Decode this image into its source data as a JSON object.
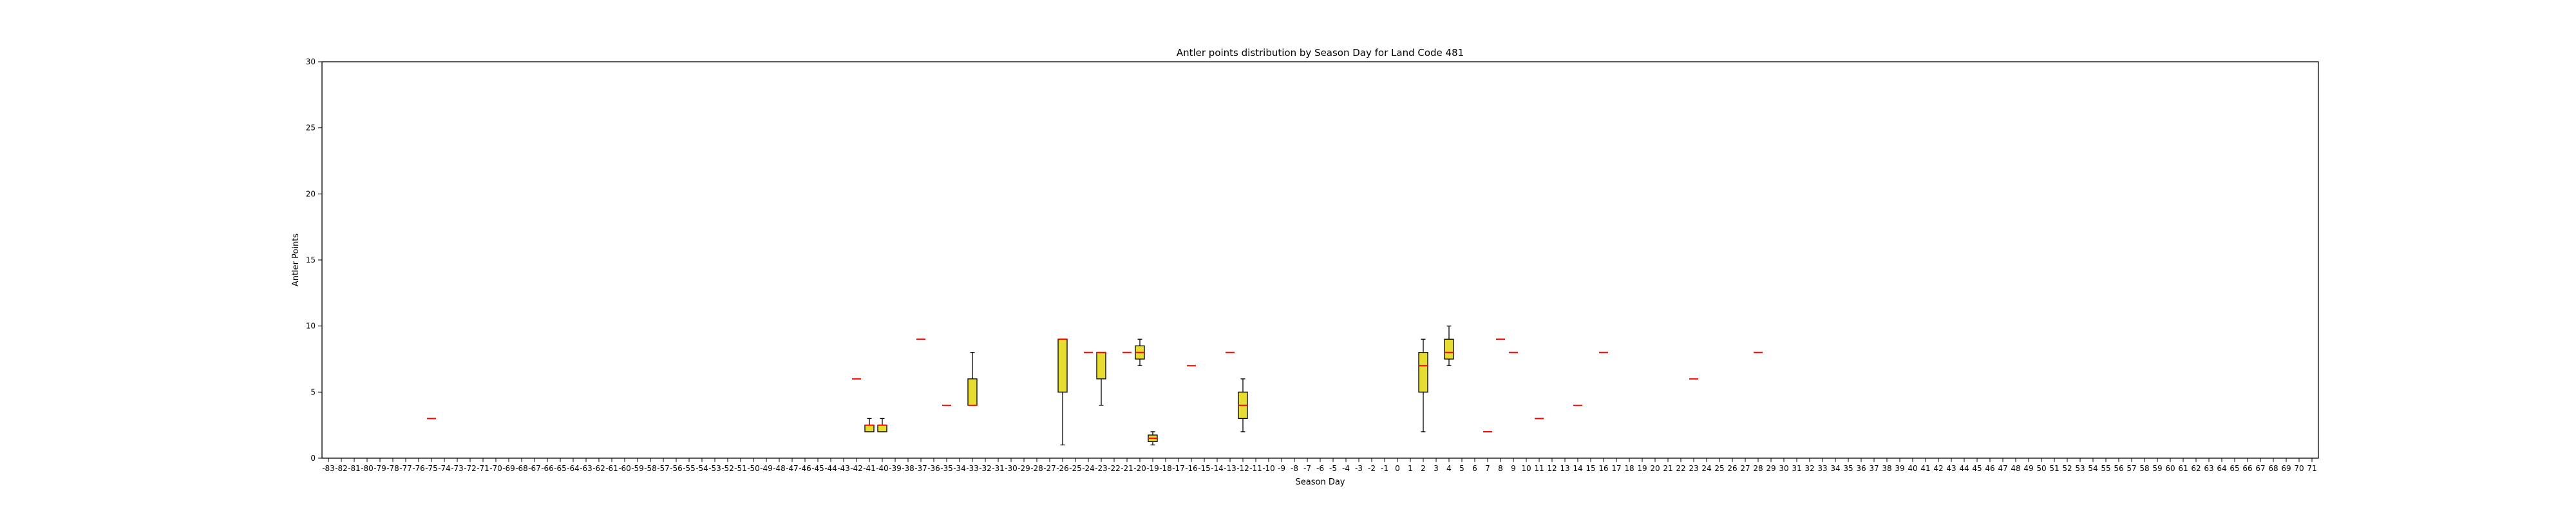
{
  "chart_data": {
    "type": "box",
    "title": "Antler points distribution by Season Day for Land Code 481",
    "xlabel": "Season Day",
    "ylabel": "Antler Points",
    "ylim": [
      0,
      30
    ],
    "yticks": [
      0,
      5,
      10,
      15,
      20,
      25,
      30
    ],
    "x_categories_range": [
      -83,
      71
    ],
    "grid": false,
    "legend": "none",
    "colors": {
      "box_fill": "#e6dc32",
      "box_edge": "#000000",
      "median": "#ff0000",
      "whisker": "#000000"
    },
    "boxes": [
      {
        "day": -75,
        "q1": 3,
        "median": 3,
        "q3": 3,
        "whislo": 3,
        "whishi": 3
      },
      {
        "day": -42,
        "q1": 6,
        "median": 6,
        "q3": 6,
        "whislo": 6,
        "whishi": 6
      },
      {
        "day": -41,
        "q1": 2,
        "median": 2.5,
        "q3": 2.5,
        "whislo": 2,
        "whishi": 3
      },
      {
        "day": -40,
        "q1": 2,
        "median": 2.5,
        "q3": 2.5,
        "whislo": 2,
        "whishi": 3
      },
      {
        "day": -37,
        "q1": 9,
        "median": 9,
        "q3": 9,
        "whislo": 9,
        "whishi": 9
      },
      {
        "day": -35,
        "q1": 4,
        "median": 4,
        "q3": 4,
        "whislo": 4,
        "whishi": 4
      },
      {
        "day": -33,
        "q1": 4,
        "median": 4,
        "q3": 6,
        "whislo": 4,
        "whishi": 8
      },
      {
        "day": -26,
        "q1": 5,
        "median": 9,
        "q3": 9,
        "whislo": 1,
        "whishi": 9
      },
      {
        "day": -24,
        "q1": 8,
        "median": 8,
        "q3": 8,
        "whislo": 8,
        "whishi": 8
      },
      {
        "day": -23,
        "q1": 6,
        "median": 8,
        "q3": 8,
        "whislo": 4,
        "whishi": 8
      },
      {
        "day": -21,
        "q1": 8,
        "median": 8,
        "q3": 8,
        "whislo": 8,
        "whishi": 8
      },
      {
        "day": -20,
        "q1": 7.5,
        "median": 8,
        "q3": 8.5,
        "whislo": 7,
        "whishi": 9
      },
      {
        "day": -19,
        "q1": 1.25,
        "median": 1.5,
        "q3": 1.75,
        "whislo": 1,
        "whishi": 2
      },
      {
        "day": -16,
        "q1": 7,
        "median": 7,
        "q3": 7,
        "whislo": 7,
        "whishi": 7
      },
      {
        "day": -13,
        "q1": 8,
        "median": 8,
        "q3": 8,
        "whislo": 8,
        "whishi": 8
      },
      {
        "day": -12,
        "q1": 3,
        "median": 4,
        "q3": 5,
        "whislo": 2,
        "whishi": 6
      },
      {
        "day": 2,
        "q1": 5,
        "median": 7,
        "q3": 8,
        "whislo": 2,
        "whishi": 9
      },
      {
        "day": 4,
        "q1": 7.5,
        "median": 8,
        "q3": 9,
        "whislo": 7,
        "whishi": 10
      },
      {
        "day": 7,
        "q1": 2,
        "median": 2,
        "q3": 2,
        "whislo": 2,
        "whishi": 2
      },
      {
        "day": 8,
        "q1": 9,
        "median": 9,
        "q3": 9,
        "whislo": 9,
        "whishi": 9
      },
      {
        "day": 9,
        "q1": 8,
        "median": 8,
        "q3": 8,
        "whislo": 8,
        "whishi": 8
      },
      {
        "day": 11,
        "q1": 3,
        "median": 3,
        "q3": 3,
        "whislo": 3,
        "whishi": 3
      },
      {
        "day": 14,
        "q1": 4,
        "median": 4,
        "q3": 4,
        "whislo": 4,
        "whishi": 4
      },
      {
        "day": 16,
        "q1": 8,
        "median": 8,
        "q3": 8,
        "whislo": 8,
        "whishi": 8
      },
      {
        "day": 23,
        "q1": 6,
        "median": 6,
        "q3": 6,
        "whislo": 6,
        "whishi": 6
      },
      {
        "day": 28,
        "q1": 8,
        "median": 8,
        "q3": 8,
        "whislo": 8,
        "whishi": 8
      }
    ]
  }
}
